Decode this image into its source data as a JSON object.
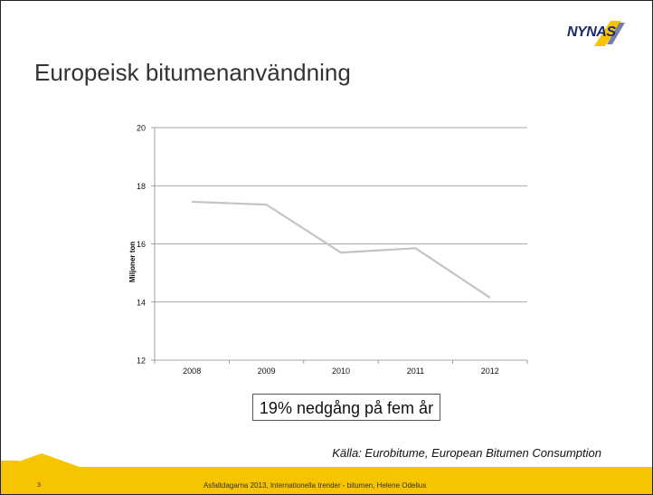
{
  "slide": {
    "title": "Europeisk bitumenanvändning",
    "logo": "NYNAS",
    "callout": "19% nedgång på fem år",
    "source": "Källa: Eurobitume, European Bitumen Consumption",
    "page_number": "3",
    "footer_text": "Asfaltdagarna 2013, Internationella trender - bitumen, Helene Odelius"
  },
  "colors": {
    "accent": "#f6c400",
    "line": "#c4c4c4",
    "grid": "#8a8a8a",
    "logo": "#1a2a6c"
  },
  "chart_data": {
    "type": "line",
    "categories": [
      "2008",
      "2009",
      "2010",
      "2011",
      "2012"
    ],
    "series": [
      {
        "values": [
          17.45,
          17.35,
          15.7,
          15.85,
          14.15
        ]
      }
    ],
    "ylabel": "Miljoner ton",
    "xlabel": "",
    "title": "",
    "ylim": [
      12,
      20
    ],
    "yticks": [
      "12",
      "14",
      "16",
      "18",
      "20"
    ],
    "grid": true,
    "legend": "none"
  }
}
